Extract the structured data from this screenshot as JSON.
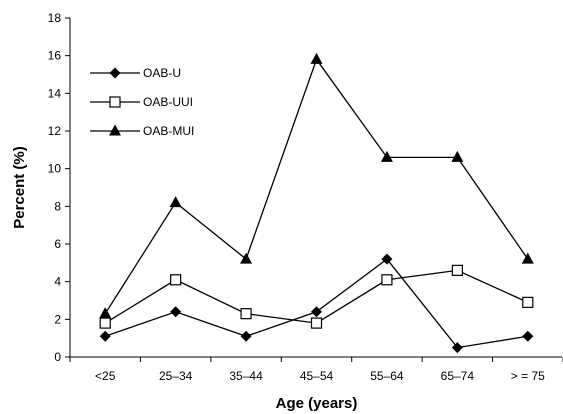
{
  "chart_data": {
    "type": "line",
    "title": "",
    "xlabel": "Age (years)",
    "ylabel": "Percent (%)",
    "categories": [
      "<25",
      "25–34",
      "35–44",
      "45–54",
      "55–64",
      "65–74",
      "> = 75"
    ],
    "ylim": [
      0,
      18
    ],
    "yticks": [
      0,
      2,
      4,
      6,
      8,
      10,
      12,
      14,
      16,
      18
    ],
    "grid": false,
    "legend_position": "top-left",
    "series": [
      {
        "name": "OAB-U",
        "marker": "diamond",
        "color": "#000000",
        "values": [
          1.1,
          2.4,
          1.1,
          2.4,
          5.2,
          0.5,
          1.1
        ]
      },
      {
        "name": "OAB-UUI",
        "marker": "square-open",
        "color": "#000000",
        "values": [
          1.8,
          4.1,
          2.3,
          1.8,
          4.1,
          4.6,
          2.9
        ]
      },
      {
        "name": "OAB-MUI",
        "marker": "triangle",
        "color": "#000000",
        "values": [
          2.3,
          8.2,
          5.2,
          15.8,
          10.6,
          10.6,
          5.2
        ]
      }
    ]
  }
}
